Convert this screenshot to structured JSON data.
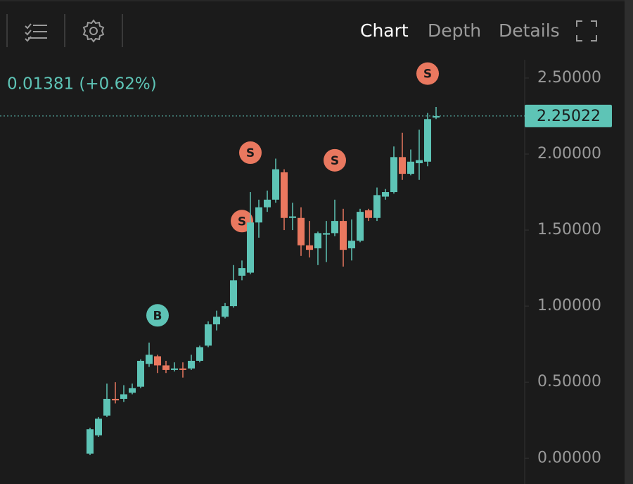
{
  "toolbar": {
    "tabs": [
      "Chart",
      "Depth",
      "Details"
    ],
    "active_tab": 0
  },
  "change_text": "0.01381 (+0.62%)",
  "chart_data": {
    "type": "candlestick",
    "up_color": "#5ec4b6",
    "down_color": "#e9785f",
    "categories": [
      null,
      null,
      null,
      null,
      null,
      null,
      null,
      null,
      null,
      null,
      null,
      null,
      null,
      null,
      null,
      null,
      null,
      null,
      null,
      null,
      null,
      null,
      null,
      null,
      null,
      null,
      null,
      null,
      null,
      null,
      null,
      null,
      null,
      null,
      null,
      null,
      null,
      null,
      null,
      null,
      null,
      null
    ],
    "open": [
      0.03,
      0.15,
      0.28,
      0.39,
      0.39,
      0.43,
      0.47,
      0.62,
      0.67,
      0.61,
      0.58,
      0.59,
      0.59,
      0.64,
      0.74,
      0.88,
      0.93,
      1.0,
      1.2,
      1.22,
      1.55,
      1.65,
      1.7,
      1.88,
      1.58,
      1.58,
      1.4,
      1.38,
      1.47,
      1.48,
      1.56,
      1.38,
      1.43,
      1.63,
      1.58,
      1.72,
      1.75,
      1.98,
      1.87,
      1.94,
      1.95,
      2.24
    ],
    "high": [
      0.2,
      0.27,
      0.49,
      0.5,
      0.48,
      0.49,
      0.65,
      0.76,
      0.68,
      0.64,
      0.63,
      0.63,
      0.68,
      0.74,
      0.9,
      0.97,
      1.02,
      1.27,
      1.3,
      1.75,
      1.7,
      1.76,
      1.97,
      1.9,
      1.68,
      1.65,
      1.56,
      1.49,
      1.56,
      1.7,
      1.64,
      1.57,
      1.64,
      1.64,
      1.78,
      1.77,
      2.05,
      2.14,
      2.03,
      2.16,
      2.27,
      2.31
    ],
    "low": [
      0.02,
      0.14,
      0.27,
      0.36,
      0.37,
      0.42,
      0.46,
      0.6,
      0.56,
      0.56,
      0.57,
      0.53,
      0.58,
      0.63,
      0.73,
      0.84,
      0.92,
      0.99,
      1.17,
      1.21,
      1.45,
      1.62,
      1.68,
      1.5,
      1.5,
      1.33,
      1.32,
      1.27,
      1.29,
      1.46,
      1.26,
      1.3,
      1.42,
      1.56,
      1.56,
      1.7,
      1.74,
      1.83,
      1.86,
      1.83,
      1.92,
      2.23
    ],
    "close": [
      0.19,
      0.26,
      0.39,
      0.38,
      0.42,
      0.46,
      0.64,
      0.68,
      0.61,
      0.58,
      0.59,
      0.58,
      0.64,
      0.73,
      0.88,
      0.93,
      1.0,
      1.17,
      1.25,
      1.55,
      1.65,
      1.7,
      1.9,
      1.58,
      1.59,
      1.4,
      1.37,
      1.48,
      1.48,
      1.56,
      1.37,
      1.43,
      1.62,
      1.58,
      1.73,
      1.75,
      1.98,
      1.87,
      1.95,
      1.96,
      2.23,
      2.25
    ],
    "signals": [
      null,
      null,
      null,
      null,
      null,
      null,
      null,
      null,
      "B",
      null,
      null,
      null,
      null,
      null,
      null,
      null,
      null,
      null,
      "S",
      "S",
      null,
      null,
      null,
      null,
      null,
      null,
      null,
      null,
      null,
      "S",
      null,
      null,
      null,
      null,
      null,
      null,
      null,
      null,
      null,
      null,
      "S",
      null
    ],
    "ylim": [
      -0.17,
      2.62
    ],
    "yticks": [
      {
        "value": 0,
        "label": "0.00000"
      },
      {
        "value": 0.5,
        "label": "0.50000"
      },
      {
        "value": 1,
        "label": "1.00000"
      },
      {
        "value": 1.5,
        "label": "1.50000"
      },
      {
        "value": 2,
        "label": "2.00000"
      },
      {
        "value": 2.5,
        "label": "2.50000"
      }
    ],
    "last_price": {
      "value": 2.25022,
      "label": "2.25022"
    }
  }
}
